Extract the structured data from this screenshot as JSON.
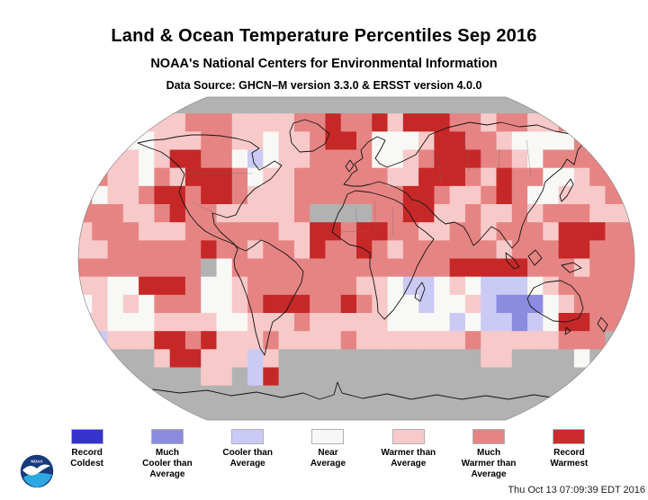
{
  "chart_data": {
    "type": "heatmap",
    "title": "Land & Ocean Temperature Percentiles Sep 2016",
    "subtitle": "NOAA's National Centers for Environmental Information",
    "data_source": "Data Source: GHCN–M version 3.3.0 & ERSST version 4.0.0",
    "projection": "robinson-world-map",
    "legend_position": "bottom",
    "categories": [
      "Record Coldest",
      "Much Cooler than Average",
      "Cooler than Average",
      "Near Average",
      "Warmer than Average",
      "Much Warmer than Average",
      "Record Warmest"
    ],
    "legend": {
      "items": [
        {
          "code": "K",
          "label": "Record\nColdest",
          "color": "#3434cc"
        },
        {
          "code": "B",
          "label": "Much\nCooler than\nAverage",
          "color": "#8b8be0"
        },
        {
          "code": "C",
          "label": "Cooler than\nAverage",
          "color": "#cacaf4"
        },
        {
          "code": "N",
          "label": "Near\nAverage",
          "color": "#f7f7f7"
        },
        {
          "code": "W",
          "label": "Warmer than\nAverage",
          "color": "#f7c9c9"
        },
        {
          "code": "M",
          "label": "Much\nWarmer than\nAverage",
          "color": "#e68484"
        },
        {
          "code": "R",
          "label": "Record\nWarmest",
          "color": "#cc2b2b"
        }
      ]
    },
    "missing_data_color": "#b2b2b2",
    "grid_cols": 36,
    "grid_row_count": 18,
    "code_colors": {
      "K": "#3434cc",
      "B": "#8b8be0",
      "C": "#cacaf4",
      "N": "#f8f8f6",
      "W": "#f7c9c9",
      "M": "#e68484",
      "R": "#c62828",
      "G": "#b2b2b2"
    },
    "grid_rows": [
      "GGGGGGGGGGGGGGGGGGGGGGGGGGGGGGGGGGGG",
      "MMWNWWWMMMWWWWMMRMMRWRRRMMWMMWWMGGGG",
      "MNNNNWWWMMWWNWWMRRMNNNWRRMMWNNNNMMGG",
      "RRWWNWRRMMNCNWWMMMMNNWMRRRMMWNMMMMWG",
      "MMWWNMWRRRMNWWMMMMMMWWRRRMWRMMNNWMMM",
      "MNWWMRRMRRMWWWMMMMMMMRRMWWMRMNNWWWMM",
      "MMMWWMRMMWWWWWMGGGGMMRRWWMWWMWMMMWWW",
      "WMMMWWWMMMMMMWWRRMRRMMWWMMWMMMWRRRMM",
      "WWMMMMMMRMMWMMWRMMRMWMMMMMMWMMMRRMMM",
      "MMMMMMMMGNMMMMMMMMMMMMMMRRRRRMMMWMMM",
      "WWNNRRRMNNWMMMMMMMWWNCCNWNCCCNWMMMMM",
      "NWNWNMMMNNWMRRRMMRMWNNCNNWCBBBNWMMMM",
      "WWNNNWWWWNNWWWMWWWWWNNNNCNCCBCNRRMMM",
      "BCWWWRRMRWWWMWWWWMWWWWWWWMWWWWWMMMGG",
      "BCGGGWRRWWWCWGGGGGGGGGGGGGWWGGGGNGGG",
      "GGGGGGGGWWGCRGGGGGGGGGGGGGGGGGGGGGGG",
      "GGGGGGGGGGGGGGGGGGGGGGGGGGGGGGGGGGGG",
      "GGGGGGGGGGGGGGGGGGGGGGGGGGGGGGGGGGGG"
    ]
  },
  "footer": {
    "timestamp": "Thu Oct 13 07:09:39 EDT 2016"
  },
  "logo": {
    "label": "NOAA"
  }
}
